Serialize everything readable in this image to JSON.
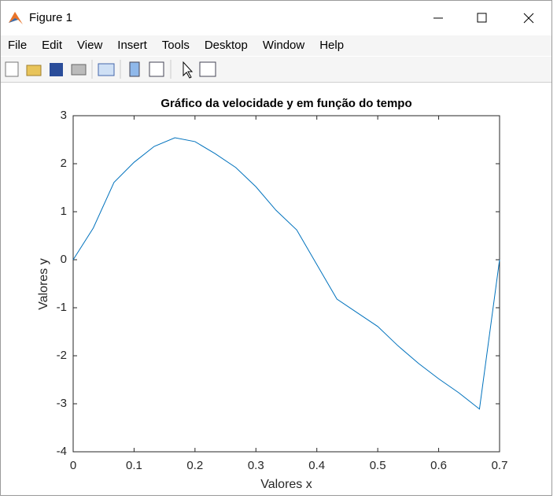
{
  "window": {
    "title": "Figure 1",
    "menu": [
      "File",
      "Edit",
      "View",
      "Insert",
      "Tools",
      "Desktop",
      "Window",
      "Help"
    ]
  },
  "chart_data": {
    "type": "line",
    "title": "Gráfico da velocidade y em função do tempo",
    "x_label": "Valores x",
    "y_label": "Valores y",
    "x": [
      0,
      0.033,
      0.067,
      0.1,
      0.133,
      0.167,
      0.2,
      0.233,
      0.267,
      0.3,
      0.333,
      0.367,
      0.4,
      0.433,
      0.467,
      0.5,
      0.533,
      0.567,
      0.6,
      0.633,
      0.667,
      0.7
    ],
    "series": [
      {
        "name": "y",
        "color": "#0072bd",
        "values": [
          0,
          0.66,
          1.61,
          2.03,
          2.36,
          2.54,
          2.46,
          2.21,
          1.92,
          1.52,
          1.03,
          0.62,
          -0.1,
          -0.82,
          -1.11,
          -1.39,
          -1.79,
          -2.16,
          -2.48,
          -2.77,
          -3.11,
          0
        ]
      }
    ],
    "xlim": [
      0,
      0.7
    ],
    "ylim": [
      -4,
      3
    ],
    "xticks": [
      0,
      0.1,
      0.2,
      0.3,
      0.4,
      0.5,
      0.6,
      0.7
    ],
    "yticks": [
      -4,
      -3,
      -2,
      -1,
      0,
      1,
      2,
      3
    ]
  }
}
